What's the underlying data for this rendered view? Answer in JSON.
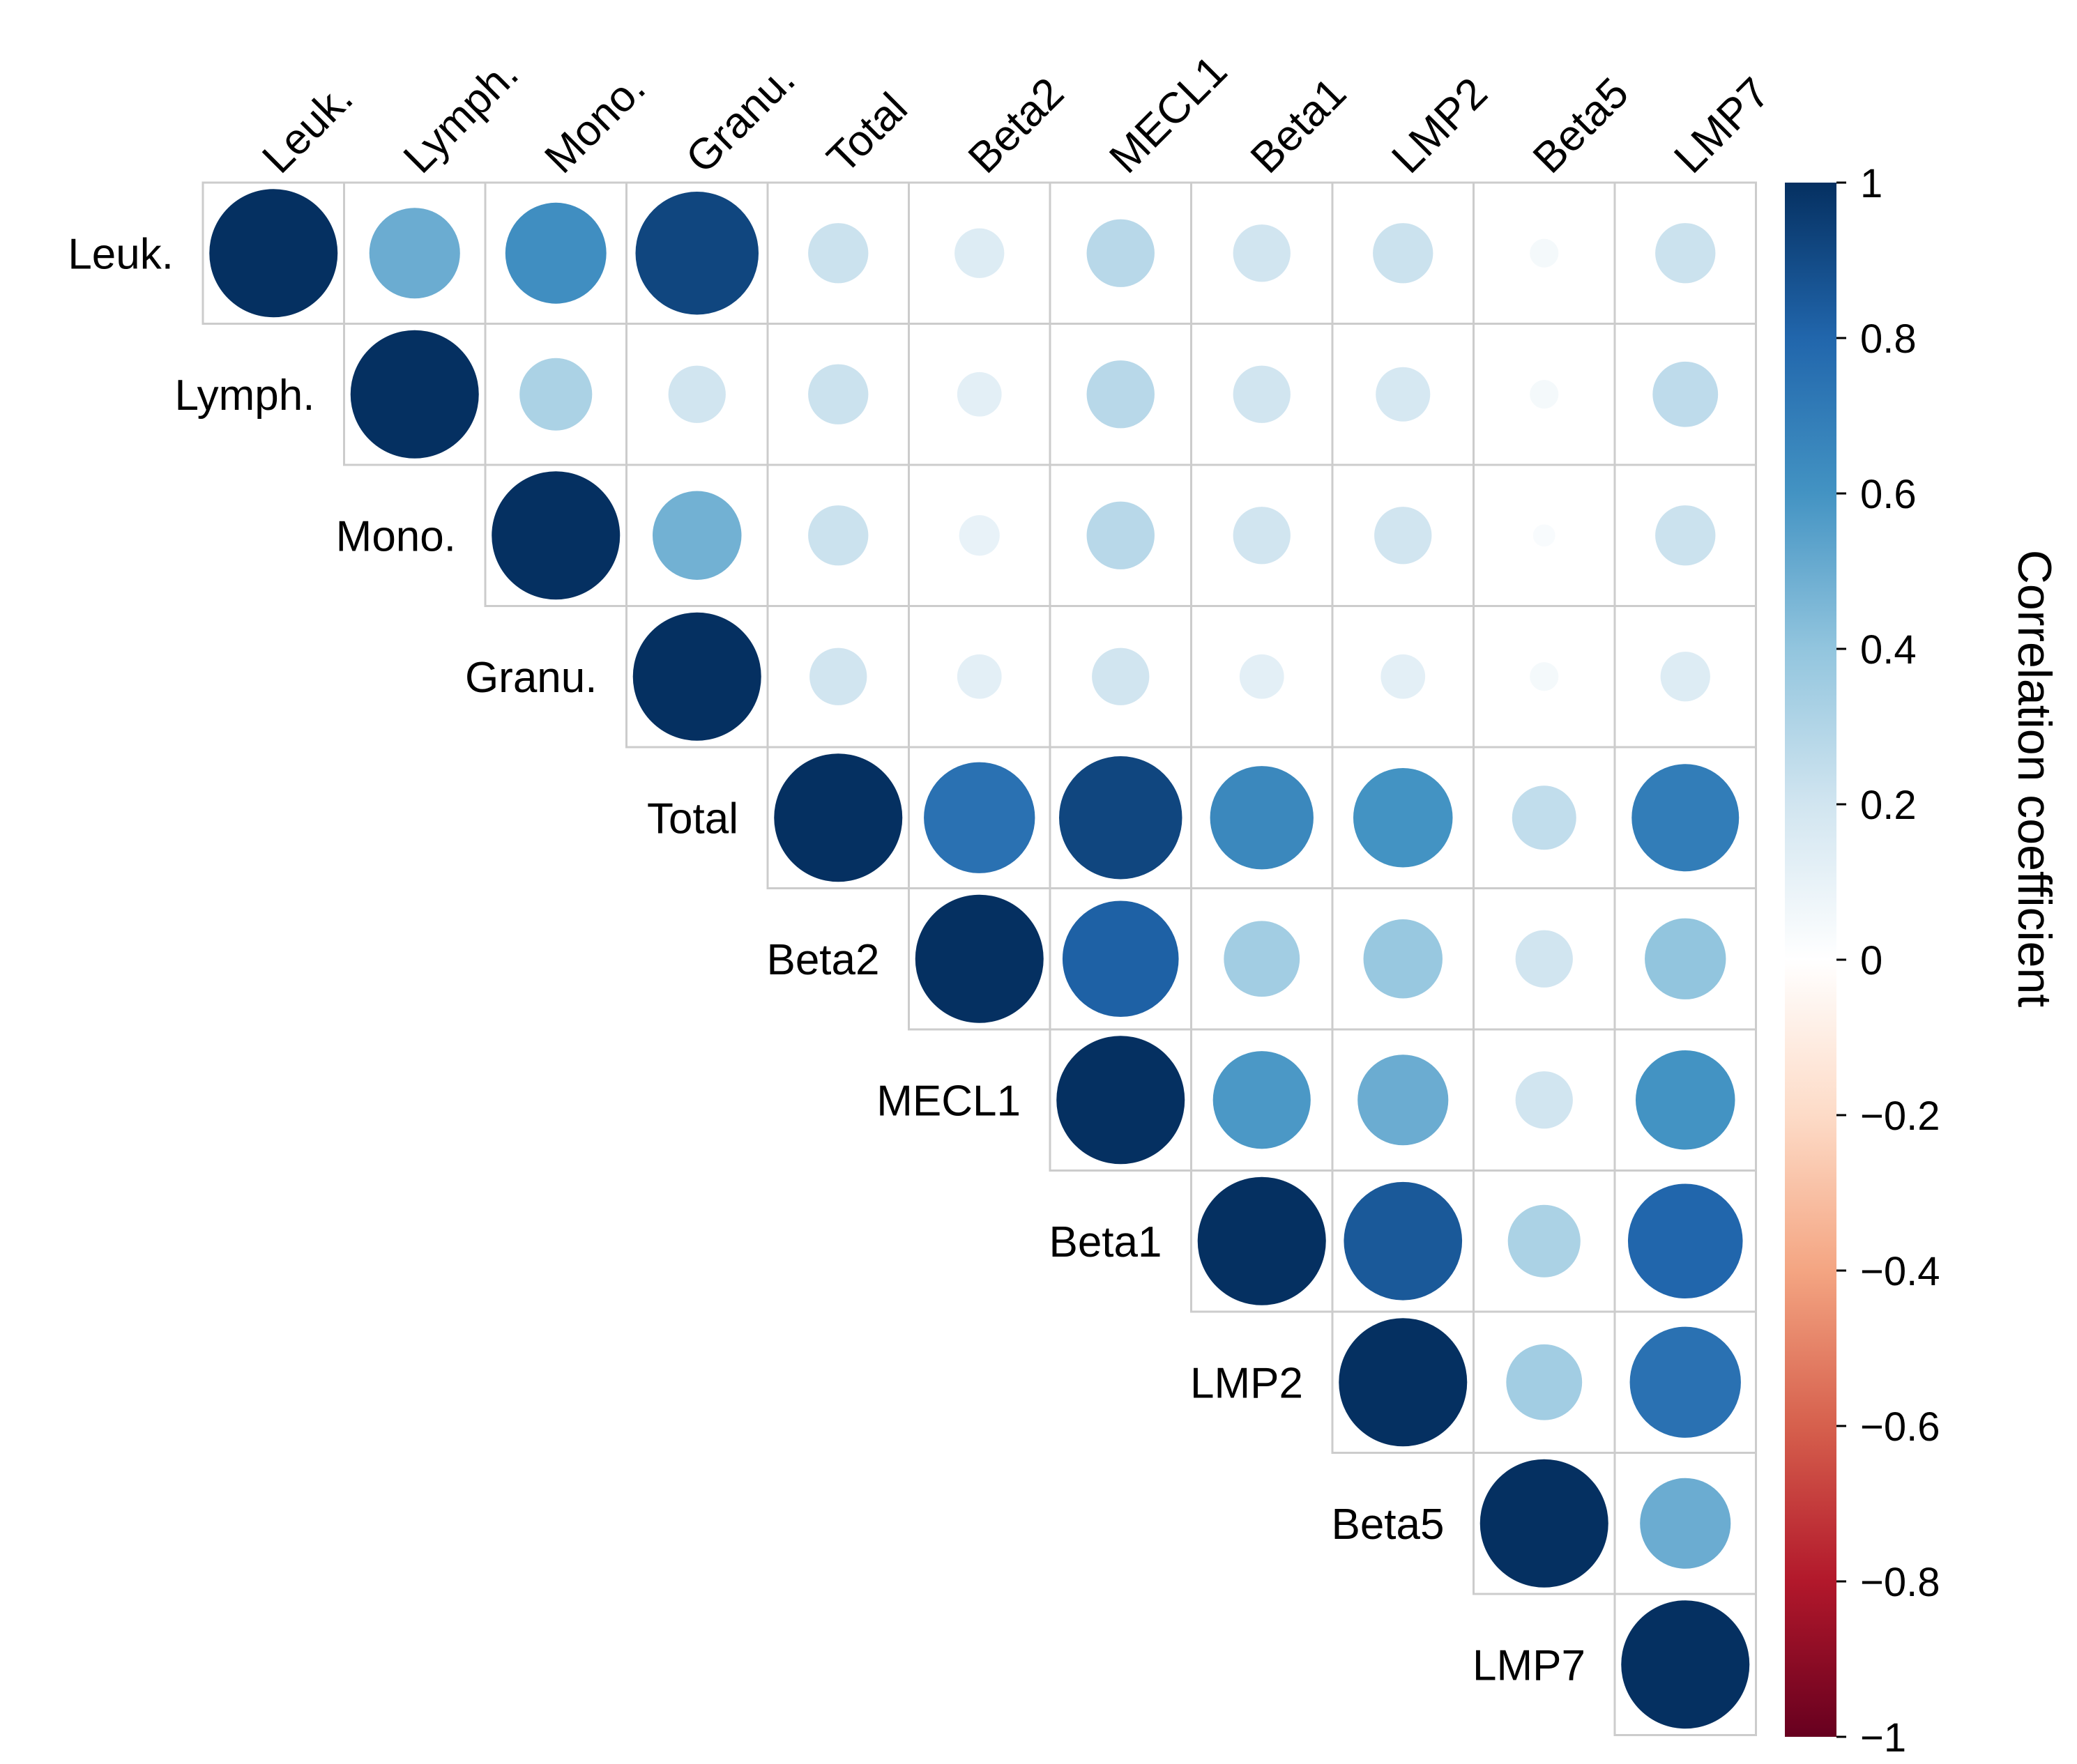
{
  "chart_data": {
    "type": "heatmap",
    "subtype": "correlation-matrix-upper-circles",
    "labels": [
      "Leuk.",
      "Lymph.",
      "Mono.",
      "Granu.",
      "Total",
      "Beta2",
      "MECL1",
      "Beta1",
      "LMP2",
      "Beta5",
      "LMP7"
    ],
    "matrix": [
      [
        1.0,
        0.5,
        0.62,
        0.92,
        0.22,
        0.15,
        0.28,
        0.2,
        0.22,
        0.05,
        0.22
      ],
      [
        null,
        1.0,
        0.32,
        0.2,
        0.22,
        0.12,
        0.28,
        0.2,
        0.18,
        0.05,
        0.26
      ],
      [
        null,
        null,
        1.0,
        0.48,
        0.22,
        0.1,
        0.28,
        0.2,
        0.2,
        0.03,
        0.22
      ],
      [
        null,
        null,
        null,
        1.0,
        0.2,
        0.12,
        0.2,
        0.12,
        0.12,
        0.05,
        0.15
      ],
      [
        null,
        null,
        null,
        null,
        1.0,
        0.75,
        0.92,
        0.65,
        0.6,
        0.25,
        0.7
      ],
      [
        null,
        null,
        null,
        null,
        null,
        1.0,
        0.82,
        0.35,
        0.38,
        0.2,
        0.4
      ],
      [
        null,
        null,
        null,
        null,
        null,
        null,
        1.0,
        0.58,
        0.5,
        0.2,
        0.6
      ],
      [
        null,
        null,
        null,
        null,
        null,
        null,
        null,
        1.0,
        0.85,
        0.32,
        0.8
      ],
      [
        null,
        null,
        null,
        null,
        null,
        null,
        null,
        null,
        1.0,
        0.35,
        0.75
      ],
      [
        null,
        null,
        null,
        null,
        null,
        null,
        null,
        null,
        null,
        1.0,
        0.5
      ],
      [
        null,
        null,
        null,
        null,
        null,
        null,
        null,
        null,
        null,
        null,
        1.0
      ]
    ],
    "colorbar": {
      "title": "Correlation coefficient",
      "range": [
        -1,
        1
      ],
      "ticks": [
        1,
        0.8,
        0.6,
        0.4,
        0.2,
        0,
        -0.2,
        -0.4,
        -0.6,
        -0.8,
        -1
      ],
      "tick_labels": [
        "1",
        "0.8",
        "0.6",
        "0.4",
        "0.2",
        "0",
        "−0.2",
        "−0.4",
        "−0.6",
        "−0.8",
        "−1"
      ],
      "colors": [
        "#67001f",
        "#b2182b",
        "#d6604d",
        "#f4a582",
        "#fddbc7",
        "#ffffff",
        "#d1e5f0",
        "#92c5de",
        "#4393c3",
        "#2166ac",
        "#053061"
      ]
    },
    "grid_color": "#cccccc"
  }
}
